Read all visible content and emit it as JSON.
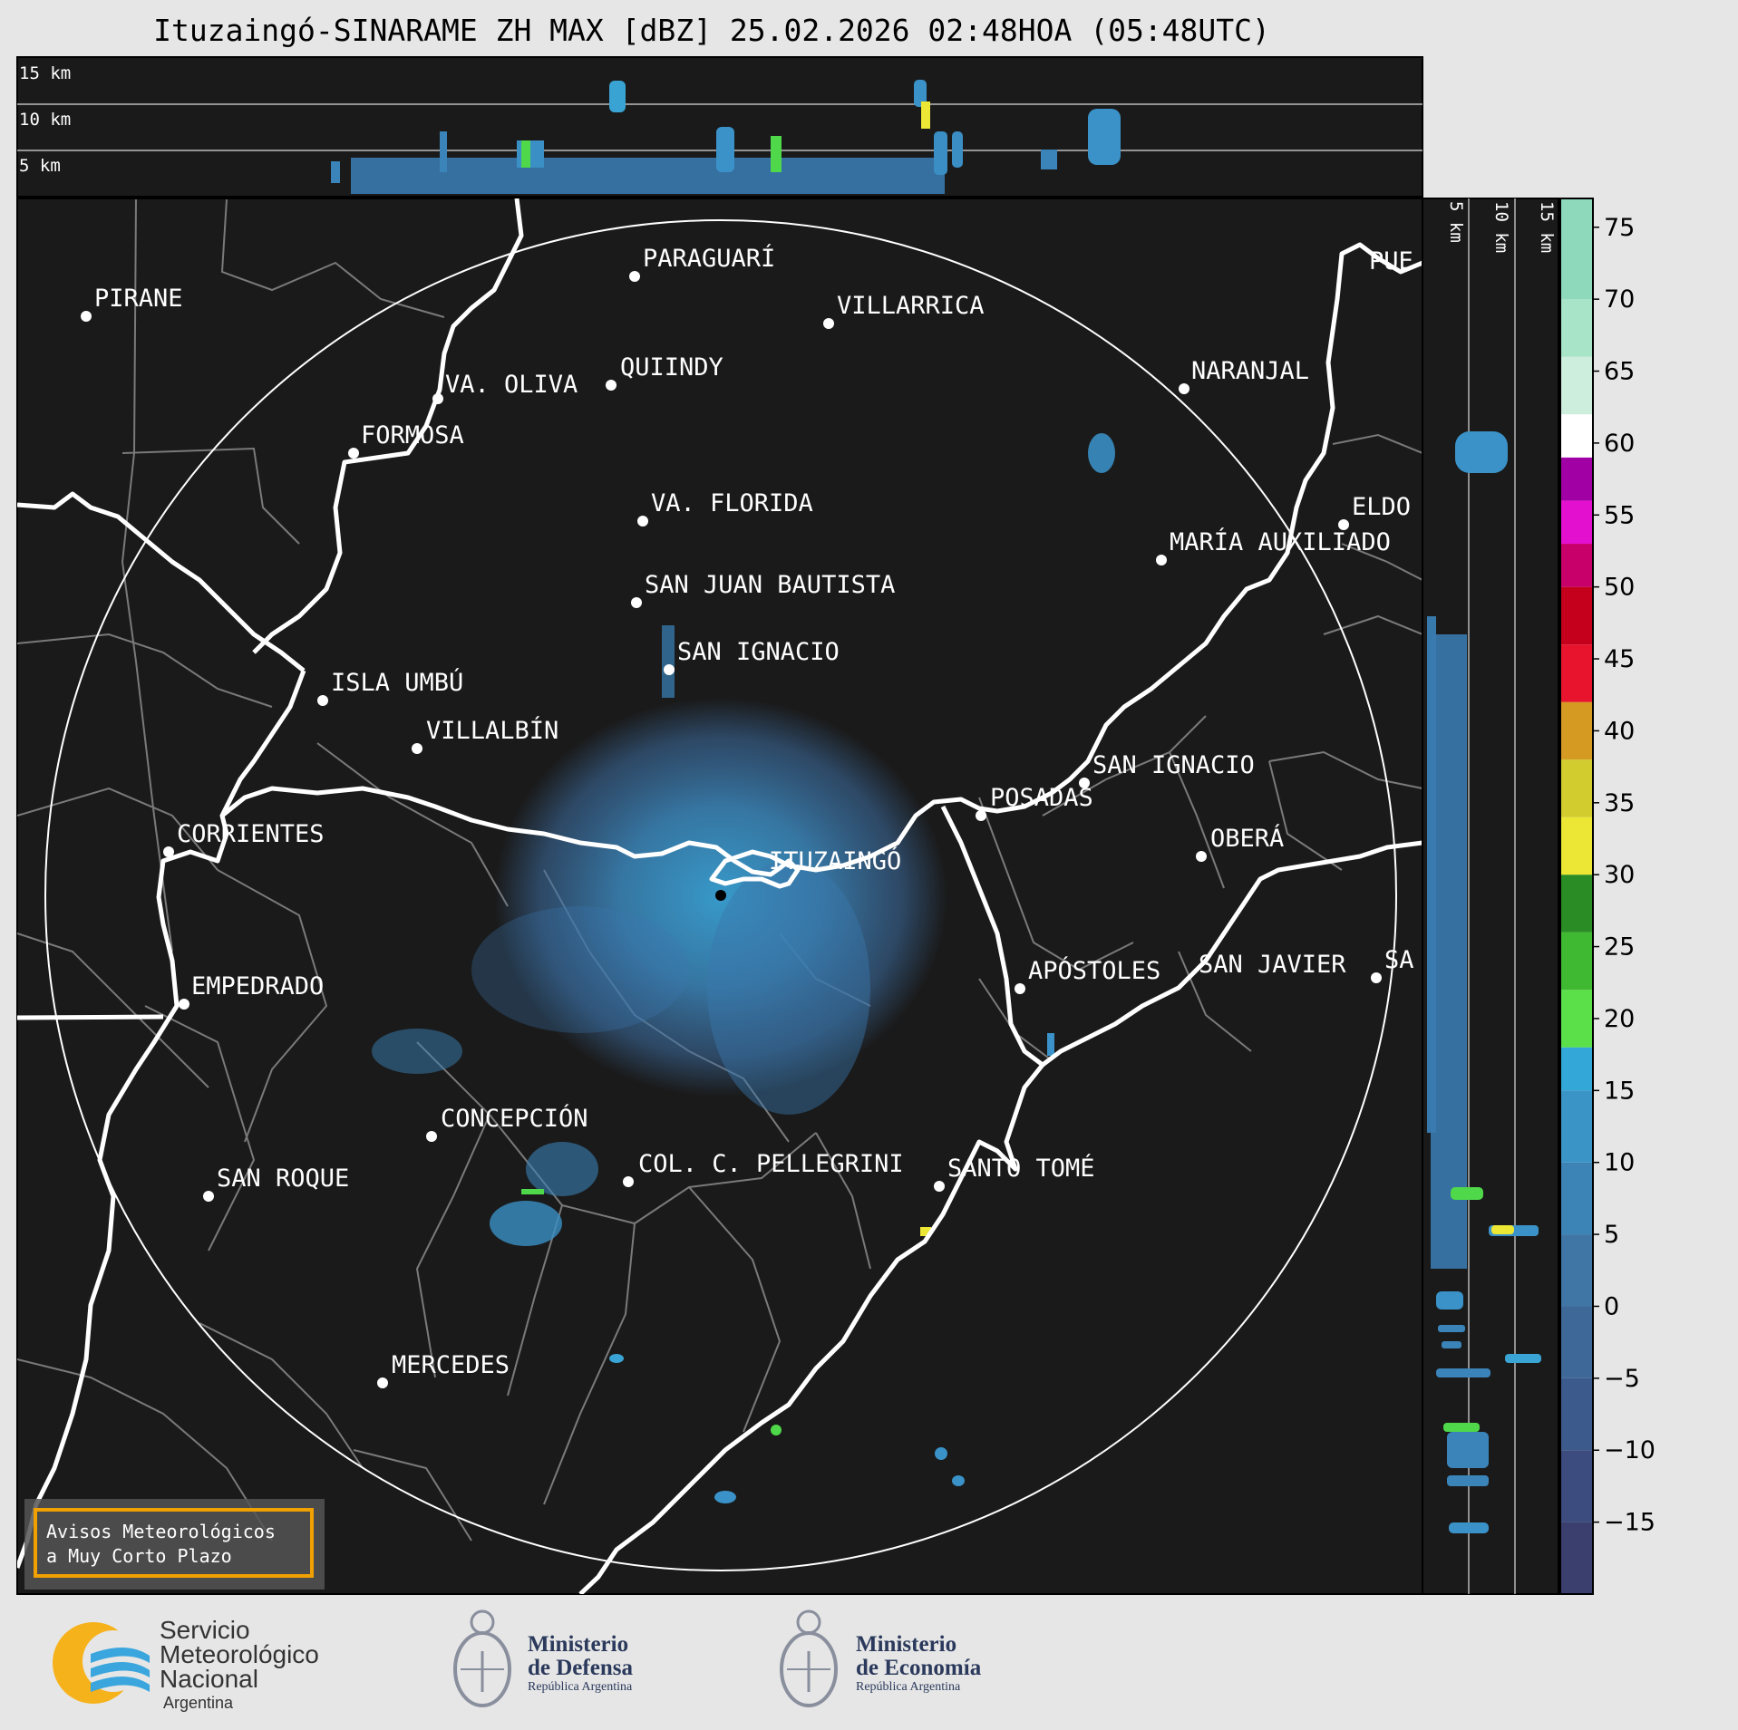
{
  "title": "Ituzaingó-SINARAME ZH MAX [dBZ] 25.02.2026 02:48HOA (05:48UTC)",
  "top_panel_labels": [
    "15 km",
    "10 km",
    "5 km"
  ],
  "side_panel_labels": [
    "5 km",
    "10 km",
    "15 km"
  ],
  "cities": [
    {
      "name": "PIRANE"
    },
    {
      "name": "PARAGUARÍ"
    },
    {
      "name": "VILLARRICA"
    },
    {
      "name": "VA. OLIVA"
    },
    {
      "name": "QUIINDY"
    },
    {
      "name": "NARANJAL"
    },
    {
      "name": "FORMOSA"
    },
    {
      "name": "PUE"
    },
    {
      "name": "VA. FLORIDA"
    },
    {
      "name": "ELDO"
    },
    {
      "name": "MARÍA AUXILIADO"
    },
    {
      "name": "SAN JUAN BAUTISTA"
    },
    {
      "name": "SAN IGNACIO"
    },
    {
      "name": "ISLA UMBÚ"
    },
    {
      "name": "VILLALBÍN"
    },
    {
      "name": "SAN IGNACIO"
    },
    {
      "name": "POSADAS"
    },
    {
      "name": "CORRIENTES"
    },
    {
      "name": "ITUZAINGÓ"
    },
    {
      "name": "OBERÁ"
    },
    {
      "name": "EMPEDRADO"
    },
    {
      "name": "APÓSTOLES"
    },
    {
      "name": "SAN JAVIER"
    },
    {
      "name": "SA"
    },
    {
      "name": "CONCEPCIÓN"
    },
    {
      "name": "COL. C. PELLEGRINI"
    },
    {
      "name": "SANTO TOMÉ"
    },
    {
      "name": "SAN ROQUE"
    },
    {
      "name": "MERCEDES"
    }
  ],
  "warning_box": {
    "line1": "Avisos Meteorológicos",
    "line2": "a Muy Corto Plazo"
  },
  "colorbar": {
    "ticks": [
      "75",
      "70",
      "65",
      "60",
      "55",
      "50",
      "45",
      "40",
      "35",
      "30",
      "25",
      "20",
      "15",
      "10",
      "5",
      "0",
      "−5",
      "−10",
      "−15"
    ],
    "tick_values": [
      75,
      70,
      65,
      60,
      55,
      50,
      45,
      40,
      35,
      30,
      25,
      20,
      15,
      10,
      5,
      0,
      -5,
      -10,
      -15
    ],
    "range": [
      -20,
      77
    ],
    "stops": [
      {
        "from": -20,
        "color": "#3a3f6e"
      },
      {
        "from": -15,
        "color": "#3c4c7e"
      },
      {
        "from": -10,
        "color": "#3d5a8c"
      },
      {
        "from": -5,
        "color": "#3e6898"
      },
      {
        "from": 0,
        "color": "#3f76a6"
      },
      {
        "from": 5,
        "color": "#3d84b6"
      },
      {
        "from": 10,
        "color": "#3a94c6"
      },
      {
        "from": 15,
        "color": "#33a8d8"
      },
      {
        "from": 18,
        "color": "#5ce04a"
      },
      {
        "from": 22,
        "color": "#3fb832"
      },
      {
        "from": 26,
        "color": "#2a8c24"
      },
      {
        "from": 30,
        "color": "#ece634"
      },
      {
        "from": 34,
        "color": "#d2cc2e"
      },
      {
        "from": 38,
        "color": "#d49a22"
      },
      {
        "from": 42,
        "color": "#e8142e"
      },
      {
        "from": 46,
        "color": "#c4001c"
      },
      {
        "from": 50,
        "color": "#c8006a"
      },
      {
        "from": 53,
        "color": "#e410d0"
      },
      {
        "from": 56,
        "color": "#a000a4"
      },
      {
        "from": 59,
        "color": "#ffffff"
      },
      {
        "from": 62,
        "color": "#cdeedd"
      },
      {
        "from": 66,
        "color": "#a8e4c8"
      },
      {
        "from": 70,
        "color": "#8ed8bc"
      }
    ]
  },
  "logos": {
    "smn": {
      "l1": "Servicio",
      "l2": "Meteorológico",
      "l3": "Nacional",
      "l4": "Argentina"
    },
    "defensa": {
      "l1": "Ministerio",
      "l2": "de Defensa",
      "l3": "República Argentina"
    },
    "economia": {
      "l1": "Ministerio",
      "l2": "de Economía",
      "l3": "República Argentina"
    }
  }
}
